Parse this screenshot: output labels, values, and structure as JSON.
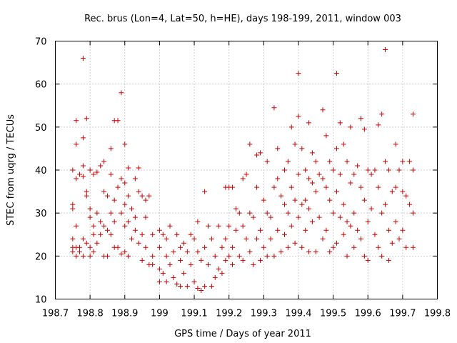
{
  "chart_data": {
    "type": "scatter",
    "title": "Rec. brus (Lon=4, Lat=50, h=HE), days 198-199, 2011, window 003",
    "xlabel": "GPS time / Days of year 2011",
    "ylabel": "STEC from uqrg / TECUs",
    "xlim": [
      198.7,
      199.8
    ],
    "ylim": [
      10,
      70
    ],
    "xticks": [
      "198.7",
      "198.8",
      "198.9",
      "199",
      "199.1",
      "199.2",
      "199.3",
      "199.4",
      "199.5",
      "199.6",
      "199.7",
      "199.8"
    ],
    "yticks": [
      "10",
      "20",
      "30",
      "40",
      "50",
      "60",
      "70"
    ],
    "grid": true,
    "marker": "plus",
    "color": "#cc0000",
    "points": [
      [
        198.75,
        40
      ],
      [
        198.75,
        32
      ],
      [
        198.75,
        31
      ],
      [
        198.75,
        24
      ],
      [
        198.75,
        22
      ],
      [
        198.75,
        21
      ],
      [
        198.76,
        46
      ],
      [
        198.76,
        51.5
      ],
      [
        198.76,
        38
      ],
      [
        198.76,
        27
      ],
      [
        198.76,
        22
      ],
      [
        198.76,
        20
      ],
      [
        198.77,
        39
      ],
      [
        198.77,
        22
      ],
      [
        198.77,
        21
      ],
      [
        198.78,
        66
      ],
      [
        198.78,
        47.5
      ],
      [
        198.78,
        41
      ],
      [
        198.78,
        38.5
      ],
      [
        198.78,
        24
      ],
      [
        198.78,
        20
      ],
      [
        198.79,
        52
      ],
      [
        198.79,
        35
      ],
      [
        198.79,
        34
      ],
      [
        198.79,
        23
      ],
      [
        198.8,
        40
      ],
      [
        198.8,
        31
      ],
      [
        198.8,
        29
      ],
      [
        198.8,
        22
      ],
      [
        198.8,
        20
      ],
      [
        198.81,
        39
      ],
      [
        198.81,
        27
      ],
      [
        198.81,
        25
      ],
      [
        198.81,
        21
      ],
      [
        198.82,
        39.5
      ],
      [
        198.82,
        30
      ],
      [
        198.82,
        23
      ],
      [
        198.83,
        41
      ],
      [
        198.83,
        28
      ],
      [
        198.83,
        25
      ],
      [
        198.84,
        42
      ],
      [
        198.84,
        35
      ],
      [
        198.84,
        27
      ],
      [
        198.84,
        20
      ],
      [
        198.85,
        34
      ],
      [
        198.85,
        26
      ],
      [
        198.85,
        20
      ],
      [
        198.86,
        45
      ],
      [
        198.86,
        39
      ],
      [
        198.86,
        30
      ],
      [
        198.86,
        25
      ],
      [
        198.87,
        51.5
      ],
      [
        198.87,
        33
      ],
      [
        198.87,
        28
      ],
      [
        198.87,
        22
      ],
      [
        198.88,
        51.5
      ],
      [
        198.88,
        36
      ],
      [
        198.88,
        22
      ],
      [
        198.89,
        58
      ],
      [
        198.89,
        38
      ],
      [
        198.89,
        30
      ],
      [
        198.89,
        20.5
      ],
      [
        198.9,
        46
      ],
      [
        198.9,
        37
      ],
      [
        198.9,
        32
      ],
      [
        198.9,
        27
      ],
      [
        198.9,
        21
      ],
      [
        198.91,
        40.5
      ],
      [
        198.91,
        34
      ],
      [
        198.91,
        28
      ],
      [
        198.91,
        20
      ],
      [
        198.92,
        31
      ],
      [
        198.92,
        24
      ],
      [
        198.93,
        38
      ],
      [
        198.93,
        29
      ],
      [
        198.93,
        26
      ],
      [
        198.94,
        40.5
      ],
      [
        198.94,
        35
      ],
      [
        198.94,
        23
      ],
      [
        198.95,
        34
      ],
      [
        198.95,
        25
      ],
      [
        198.95,
        19
      ],
      [
        198.96,
        33
      ],
      [
        198.96,
        29
      ],
      [
        198.96,
        22
      ],
      [
        198.97,
        34
      ],
      [
        198.97,
        18
      ],
      [
        198.98,
        25
      ],
      [
        198.98,
        20
      ],
      [
        198.98,
        18
      ],
      [
        199.0,
        26
      ],
      [
        199.0,
        22
      ],
      [
        199.0,
        17
      ],
      [
        199.0,
        14
      ],
      [
        199.01,
        25
      ],
      [
        199.01,
        16
      ],
      [
        199.02,
        24
      ],
      [
        199.02,
        20
      ],
      [
        199.02,
        14
      ],
      [
        199.03,
        27
      ],
      [
        199.03,
        18
      ],
      [
        199.04,
        21
      ],
      [
        199.04,
        15
      ],
      [
        199.05,
        25
      ],
      [
        199.05,
        13.5
      ],
      [
        199.06,
        22
      ],
      [
        199.06,
        19
      ],
      [
        199.06,
        13
      ],
      [
        199.07,
        23
      ],
      [
        199.07,
        16
      ],
      [
        199.08,
        21
      ],
      [
        199.08,
        13
      ],
      [
        199.09,
        25
      ],
      [
        199.09,
        18
      ],
      [
        199.1,
        24
      ],
      [
        199.1,
        14
      ],
      [
        199.11,
        28
      ],
      [
        199.11,
        21
      ],
      [
        199.11,
        12.5
      ],
      [
        199.12,
        19
      ],
      [
        199.12,
        12
      ],
      [
        199.13,
        35
      ],
      [
        199.13,
        22
      ],
      [
        199.13,
        13
      ],
      [
        199.14,
        27
      ],
      [
        199.14,
        18
      ],
      [
        199.15,
        24
      ],
      [
        199.15,
        13
      ],
      [
        199.16,
        20
      ],
      [
        199.16,
        15
      ],
      [
        199.17,
        27
      ],
      [
        199.17,
        17
      ],
      [
        199.18,
        22
      ],
      [
        199.18,
        16
      ],
      [
        199.19,
        36
      ],
      [
        199.19,
        24
      ],
      [
        199.19,
        19
      ],
      [
        199.2,
        36
      ],
      [
        199.2,
        27
      ],
      [
        199.2,
        20
      ],
      [
        199.21,
        36
      ],
      [
        199.21,
        22
      ],
      [
        199.21,
        18
      ],
      [
        199.22,
        31
      ],
      [
        199.22,
        26
      ],
      [
        199.23,
        30
      ],
      [
        199.23,
        20
      ],
      [
        199.24,
        38
      ],
      [
        199.24,
        27
      ],
      [
        199.24,
        19
      ],
      [
        199.25,
        39
      ],
      [
        199.25,
        24
      ],
      [
        199.26,
        46
      ],
      [
        199.26,
        30
      ],
      [
        199.26,
        21
      ],
      [
        199.27,
        29
      ],
      [
        199.27,
        18
      ],
      [
        199.28,
        36
      ],
      [
        199.28,
        43.5
      ],
      [
        199.28,
        24
      ],
      [
        199.29,
        44
      ],
      [
        199.29,
        26
      ],
      [
        199.29,
        19
      ],
      [
        199.3,
        33
      ],
      [
        199.3,
        22
      ],
      [
        199.31,
        42
      ],
      [
        199.31,
        30
      ],
      [
        199.31,
        20
      ],
      [
        199.32,
        29
      ],
      [
        199.32,
        24
      ],
      [
        199.33,
        54.5
      ],
      [
        199.33,
        36
      ],
      [
        199.33,
        20
      ],
      [
        199.34,
        45
      ],
      [
        199.34,
        38
      ],
      [
        199.34,
        26
      ],
      [
        199.35,
        34
      ],
      [
        199.35,
        21
      ],
      [
        199.36,
        40
      ],
      [
        199.36,
        32
      ],
      [
        199.36,
        25
      ],
      [
        199.37,
        42
      ],
      [
        199.37,
        30
      ],
      [
        199.37,
        22
      ],
      [
        199.38,
        50
      ],
      [
        199.38,
        36
      ],
      [
        199.38,
        27
      ],
      [
        199.39,
        46
      ],
      [
        199.39,
        33
      ],
      [
        199.39,
        23
      ],
      [
        199.4,
        62.5
      ],
      [
        199.4,
        52.5
      ],
      [
        199.4,
        39
      ],
      [
        199.4,
        29
      ],
      [
        199.41,
        45
      ],
      [
        199.41,
        32
      ],
      [
        199.41,
        22
      ],
      [
        199.42,
        40
      ],
      [
        199.42,
        33
      ],
      [
        199.42,
        26
      ],
      [
        199.43,
        51
      ],
      [
        199.43,
        38
      ],
      [
        199.43,
        31
      ],
      [
        199.43,
        21
      ],
      [
        199.44,
        44
      ],
      [
        199.44,
        37
      ],
      [
        199.44,
        28
      ],
      [
        199.45,
        42
      ],
      [
        199.45,
        35
      ],
      [
        199.45,
        21
      ],
      [
        199.46,
        39
      ],
      [
        199.46,
        29
      ],
      [
        199.47,
        54
      ],
      [
        199.47,
        38
      ],
      [
        199.47,
        24
      ],
      [
        199.48,
        48
      ],
      [
        199.48,
        36
      ],
      [
        199.48,
        26
      ],
      [
        199.49,
        42
      ],
      [
        199.49,
        33
      ],
      [
        199.49,
        21
      ],
      [
        199.5,
        40
      ],
      [
        199.5,
        30
      ],
      [
        199.5,
        22
      ],
      [
        199.51,
        62.5
      ],
      [
        199.51,
        45
      ],
      [
        199.51,
        35
      ],
      [
        199.51,
        23
      ],
      [
        199.52,
        51
      ],
      [
        199.52,
        39
      ],
      [
        199.52,
        29
      ],
      [
        199.53,
        46
      ],
      [
        199.53,
        32
      ],
      [
        199.53,
        25
      ],
      [
        199.54,
        42
      ],
      [
        199.54,
        28
      ],
      [
        199.54,
        20
      ],
      [
        199.55,
        50
      ],
      [
        199.55,
        37
      ],
      [
        199.55,
        27
      ],
      [
        199.56,
        39
      ],
      [
        199.56,
        30
      ],
      [
        199.56,
        22
      ],
      [
        199.57,
        41
      ],
      [
        199.57,
        26
      ],
      [
        199.58,
        52
      ],
      [
        199.58,
        36
      ],
      [
        199.58,
        24
      ],
      [
        199.59,
        49.5
      ],
      [
        199.59,
        33
      ],
      [
        199.59,
        20
      ],
      [
        199.6,
        40
      ],
      [
        199.6,
        28
      ],
      [
        199.6,
        19
      ],
      [
        199.61,
        39
      ],
      [
        199.61,
        31
      ],
      [
        199.62,
        40
      ],
      [
        199.62,
        25
      ],
      [
        199.63,
        50.5
      ],
      [
        199.63,
        36
      ],
      [
        199.63,
        22
      ],
      [
        199.64,
        53
      ],
      [
        199.64,
        30
      ],
      [
        199.64,
        20
      ],
      [
        199.65,
        68
      ],
      [
        199.65,
        42
      ],
      [
        199.65,
        32
      ],
      [
        199.66,
        40
      ],
      [
        199.66,
        26
      ],
      [
        199.66,
        19
      ],
      [
        199.67,
        35
      ],
      [
        199.67,
        23
      ],
      [
        199.68,
        46
      ],
      [
        199.68,
        36
      ],
      [
        199.68,
        28
      ],
      [
        199.69,
        40
      ],
      [
        199.69,
        24
      ],
      [
        199.7,
        42
      ],
      [
        199.7,
        35
      ],
      [
        199.7,
        26
      ],
      [
        199.71,
        34
      ],
      [
        199.71,
        22
      ],
      [
        199.72,
        42
      ],
      [
        199.72,
        32
      ],
      [
        199.73,
        53
      ],
      [
        199.73,
        40
      ],
      [
        199.73,
        30
      ],
      [
        199.73,
        22
      ]
    ]
  }
}
